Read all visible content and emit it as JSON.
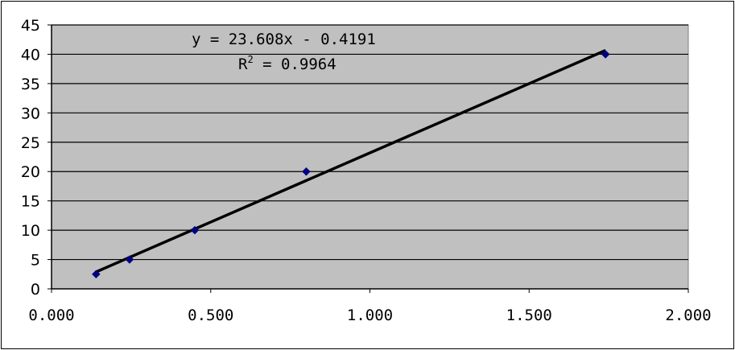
{
  "chart_data": {
    "type": "scatter",
    "title": "",
    "xlabel": "",
    "ylabel": "",
    "xlim": [
      0,
      2
    ],
    "ylim": [
      0,
      45
    ],
    "x_ticks": [
      "0.000",
      "0.500",
      "1.000",
      "1.500",
      "2.000"
    ],
    "y_ticks": [
      "0",
      "5",
      "10",
      "15",
      "20",
      "25",
      "30",
      "35",
      "40",
      "45"
    ],
    "grid": "horizontal",
    "legend": "none",
    "series": [
      {
        "points": [
          {
            "x": 0.14,
            "y": 2.5
          },
          {
            "x": 0.245,
            "y": 5
          },
          {
            "x": 0.45,
            "y": 10
          },
          {
            "x": 0.8,
            "y": 20
          },
          {
            "x": 1.74,
            "y": 40
          }
        ],
        "marker": "diamond",
        "color": "#000080"
      }
    ],
    "trendline": {
      "type": "linear",
      "slope": 23.608,
      "intercept": -0.4191,
      "x_range": [
        0.14,
        1.74
      ],
      "color": "#000000",
      "equation": "y = 23.608x - 0.4191",
      "r2_label": "R",
      "r2_sup": "2",
      "r2_value": " = 0.9964"
    },
    "colors": {
      "plot_background": "#c0c0c0",
      "gridline": "#000000",
      "marker": "#000080"
    }
  }
}
